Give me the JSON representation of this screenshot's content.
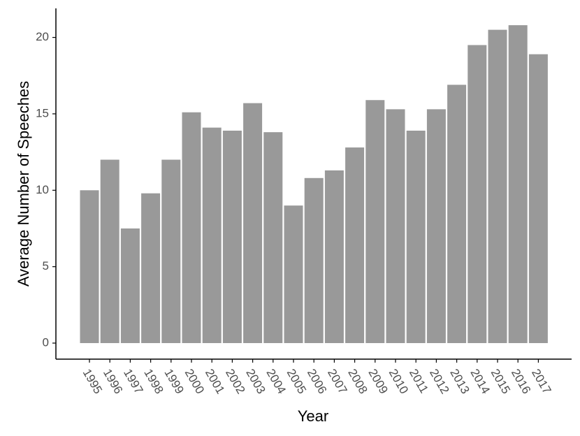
{
  "chart_data": {
    "type": "bar",
    "x_label": "Year",
    "y_label": "Average Number of Speeches",
    "categories": [
      "1995",
      "1996",
      "1997",
      "1998",
      "1999",
      "2000",
      "2001",
      "2002",
      "2003",
      "2004",
      "2005",
      "2006",
      "2007",
      "2008",
      "2009",
      "2010",
      "2011",
      "2012",
      "2013",
      "2014",
      "2015",
      "2016",
      "2017"
    ],
    "values": [
      10.0,
      12.0,
      7.5,
      9.8,
      12.0,
      15.1,
      14.1,
      13.9,
      15.7,
      13.8,
      9.0,
      10.8,
      11.3,
      12.8,
      15.9,
      15.3,
      13.9,
      15.3,
      16.9,
      19.5,
      20.5,
      20.8,
      18.9
    ],
    "color": "#999999",
    "ylim": [
      -1.05,
      21.9
    ],
    "yticks": [
      0,
      5,
      10,
      15,
      20
    ],
    "grid": false
  }
}
